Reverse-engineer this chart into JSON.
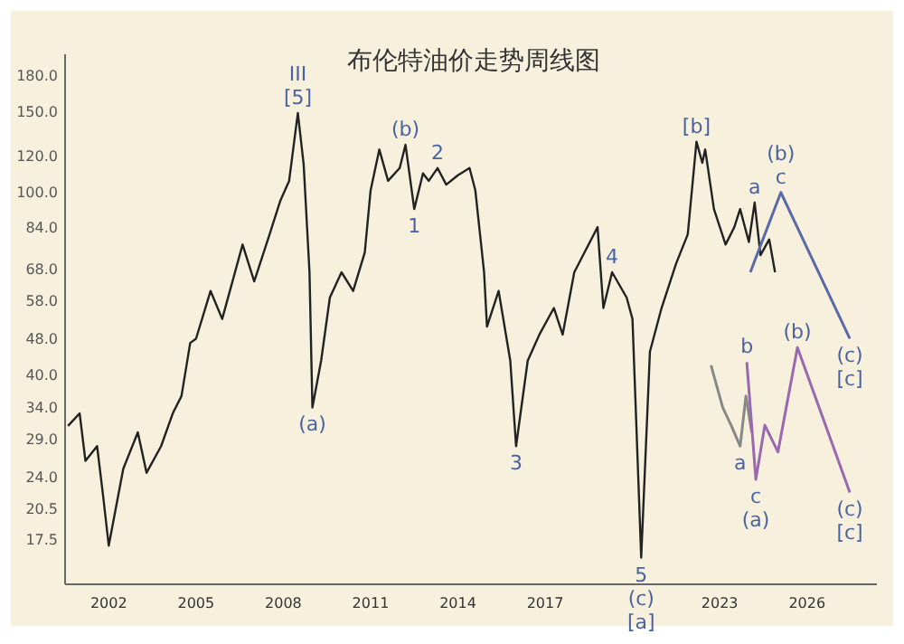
{
  "chart_data": {
    "type": "line",
    "title": "布伦特油价走势周线图",
    "log": "y",
    "xlim": [
      2000.5,
      2028.4
    ],
    "xticks": [
      2002,
      2005,
      2008,
      2011,
      2014,
      2017,
      2023,
      2026
    ],
    "ylim": [
      14,
      200
    ],
    "yticks": [
      {
        "value": 180,
        "label": "180.0"
      },
      {
        "value": 150,
        "label": "150.0"
      },
      {
        "value": 120,
        "label": "120.0"
      },
      {
        "value": 100,
        "label": "100.0"
      },
      {
        "value": 84,
        "label": "84.0"
      },
      {
        "value": 68,
        "label": "68.0"
      },
      {
        "value": 58,
        "label": "58.0"
      },
      {
        "value": 48,
        "label": "48.0"
      },
      {
        "value": 40,
        "label": "40.0"
      },
      {
        "value": 34,
        "label": "34.0"
      },
      {
        "value": 29,
        "label": "29.0"
      },
      {
        "value": 24,
        "label": "24.0"
      },
      {
        "value": 20.5,
        "label": "20.5"
      },
      {
        "value": 17.5,
        "label": "17.5"
      }
    ],
    "grid": false,
    "marker": "none",
    "series": [
      {
        "color": "#222222",
        "x": [
          2000.6,
          2001.0,
          2001.2,
          2001.6,
          2001.8,
          2002.0,
          2002.5,
          2003.0,
          2003.3,
          2003.8,
          2004.2,
          2004.5,
          2004.8,
          2005.0,
          2005.5,
          2005.9,
          2006.6,
          2007.0,
          2007.5,
          2007.9,
          2008.2,
          2008.5,
          2008.7,
          2008.9,
          2009.0,
          2009.3,
          2009.6,
          2010.0,
          2010.4,
          2010.8,
          2011.0,
          2011.3,
          2011.6,
          2012.0,
          2012.2,
          2012.5,
          2012.8,
          2013.0,
          2013.3,
          2013.6,
          2014.0,
          2014.4,
          2014.6,
          2014.9,
          2015.0,
          2015.4,
          2015.8,
          2016.0,
          2016.4,
          2016.8,
          2017.3,
          2017.6,
          2018.0,
          2018.8,
          2019.0,
          2019.3,
          2019.8,
          2020.0,
          2020.3,
          2020.6,
          2021.0,
          2021.5,
          2021.9,
          2022.2,
          2022.4,
          2022.5,
          2022.8,
          2023.2,
          2023.5,
          2023.7,
          2024.0,
          2024.2,
          2024.4,
          2024.7,
          2024.9
        ],
        "values": [
          31,
          33,
          26,
          28,
          22,
          17,
          25,
          30,
          24.5,
          28,
          33,
          36,
          47,
          48,
          61,
          53,
          77,
          64,
          80,
          96,
          106,
          149,
          115,
          67,
          34,
          43,
          59,
          67,
          61,
          74,
          101,
          124,
          106,
          113,
          127,
          92,
          110,
          106,
          113,
          104,
          109,
          113,
          101,
          67,
          51,
          61,
          43,
          28,
          43,
          49,
          56,
          49,
          67,
          84,
          56,
          67,
          59,
          53,
          16,
          45,
          56,
          70,
          81,
          129,
          116,
          124,
          92,
          77,
          84,
          92,
          78,
          95,
          73,
          79,
          67
        ]
      },
      {
        "color": "#888888",
        "x": [
          2022.7,
          2023.1,
          2023.4,
          2023.7,
          2023.9,
          2024.1
        ],
        "values": [
          42,
          34,
          31,
          28,
          36,
          30
        ]
      },
      {
        "color": "#5a6aa8",
        "x": [
          2024.05,
          2025.1,
          2027.47
        ],
        "values": [
          67,
          100,
          48
        ]
      },
      {
        "color": "#9a68b0",
        "x": [
          2023.93,
          2024.24,
          2024.55,
          2025.0,
          2025.67,
          2027.47
        ],
        "values": [
          42.7,
          23.7,
          31.1,
          27.2,
          45.9,
          22.2
        ]
      }
    ],
    "annotations": [
      {
        "text": "III\n[5]",
        "x": 2008.5,
        "y": 149
      },
      {
        "text": "(b)",
        "x": 2012.2,
        "y": 127
      },
      {
        "text": "2",
        "x": 2013.3,
        "y": 113
      },
      {
        "text": "1",
        "x": 2012.5,
        "y": 92
      },
      {
        "text": "(a)",
        "x": 2009.0,
        "y": 34
      },
      {
        "text": "3",
        "x": 2016.0,
        "y": 28
      },
      {
        "text": "4",
        "x": 2019.3,
        "y": 67
      },
      {
        "text": "5\n(c)\n[a]",
        "x": 2020.3,
        "y": 16
      },
      {
        "text": "[b]",
        "x": 2022.2,
        "y": 129
      },
      {
        "text": "a",
        "x": 2024.2,
        "y": 95
      },
      {
        "text": "(b)\nc",
        "x": 2025.1,
        "y": 100
      },
      {
        "text": "(c)\n[c]",
        "x": 2027.47,
        "y": 48
      },
      {
        "text": "b",
        "x": 2023.93,
        "y": 42.7
      },
      {
        "text": "a",
        "x": 2023.7,
        "y": 28
      },
      {
        "text": "c\n(a)",
        "x": 2024.24,
        "y": 23.7
      },
      {
        "text": "(b)",
        "x": 2025.67,
        "y": 45.9
      },
      {
        "text": "(c)\n[c]",
        "x": 2027.47,
        "y": 22.2
      }
    ]
  }
}
